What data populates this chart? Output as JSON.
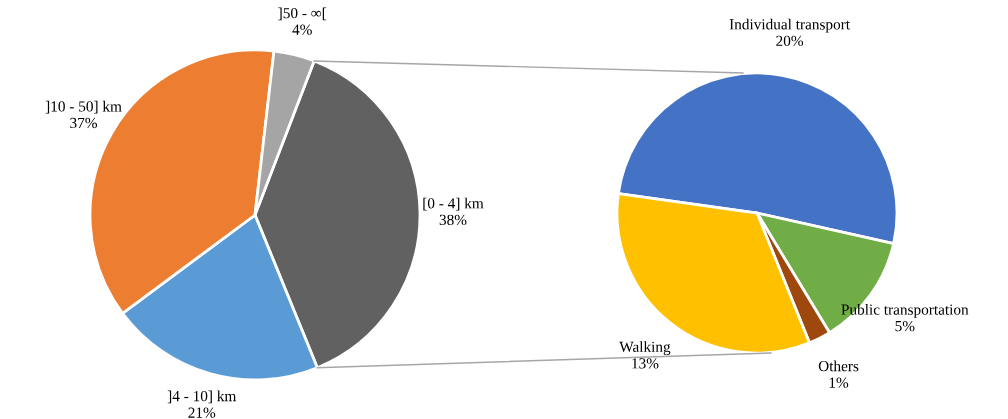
{
  "chart_data": [
    {
      "type": "pie",
      "categories": [
        "[0 - 4] km",
        "]4 - 10] km",
        "]10 - 50] km",
        "]50 - ∞["
      ],
      "values": [
        38,
        21,
        37,
        4
      ],
      "value_labels": [
        "38%",
        "21%",
        "37%",
        "4%"
      ],
      "colors": [
        "#616161",
        "#5b9bd5",
        "#ed7d31",
        "#a5a5a5"
      ]
    },
    {
      "type": "pie",
      "categories": [
        "Individual transport",
        "Public transportation",
        "Others",
        "Walking"
      ],
      "values": [
        20,
        5,
        1,
        13
      ],
      "value_labels": [
        "20%",
        "5%",
        "1%",
        "13%"
      ],
      "colors": [
        "#4472c4",
        "#70ad47",
        "#9e480e",
        "#ffc000"
      ]
    }
  ]
}
